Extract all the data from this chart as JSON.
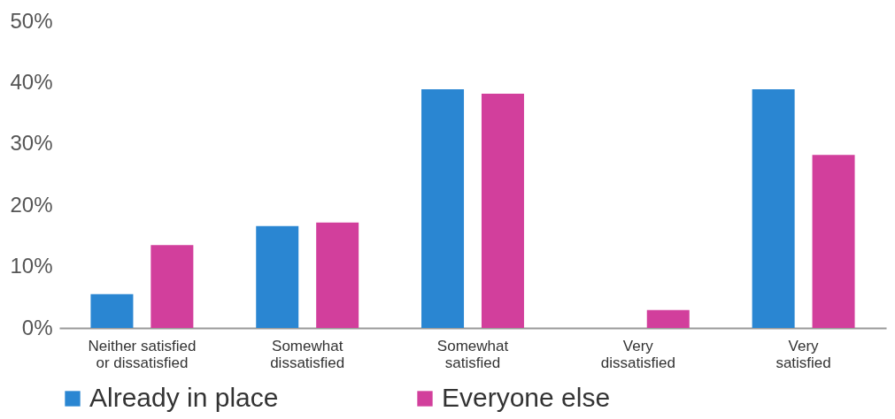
{
  "chart_data": {
    "type": "bar",
    "categories": [
      "Neither satisfied or dissatisfied",
      "Somewhat dissatisfied",
      "Somewhat satisfied",
      "Very dissatisfied",
      "Very satisfied"
    ],
    "series": [
      {
        "name": "Already in place",
        "color": "#2a86d2",
        "values": [
          5.5,
          16.6,
          38.9,
          0,
          38.9
        ]
      },
      {
        "name": "Everyone else",
        "color": "#d23f9c",
        "values": [
          13.5,
          17.2,
          38.2,
          2.9,
          28.2
        ]
      }
    ],
    "ylim": [
      0,
      50
    ],
    "yticks": [
      {
        "value": 0,
        "label": "0%"
      },
      {
        "value": 10,
        "label": "10%"
      },
      {
        "value": 20,
        "label": "20%"
      },
      {
        "value": 30,
        "label": "30%"
      },
      {
        "value": 40,
        "label": "40%"
      },
      {
        "value": 50,
        "label": "50%"
      }
    ],
    "grid": false,
    "legend": "bottom"
  }
}
